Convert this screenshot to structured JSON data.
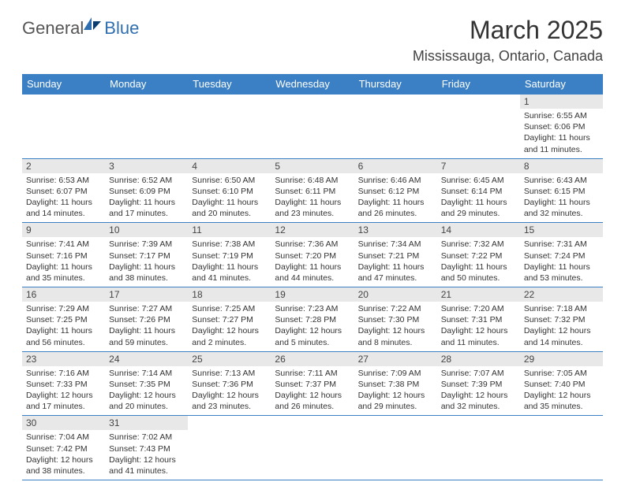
{
  "logo": {
    "part1": "General",
    "part2": "Blue"
  },
  "title": "March 2025",
  "location": "Mississauga, Ontario, Canada",
  "header_bg": "#3b7fc4",
  "border_color": "#3b7fc4",
  "daynum_bg": "#e8e8e8",
  "day_headers": [
    "Sunday",
    "Monday",
    "Tuesday",
    "Wednesday",
    "Thursday",
    "Friday",
    "Saturday"
  ],
  "weeks": [
    [
      null,
      null,
      null,
      null,
      null,
      null,
      {
        "n": "1",
        "sr": "6:55 AM",
        "ss": "6:06 PM",
        "dl": "11 hours and 11 minutes."
      }
    ],
    [
      {
        "n": "2",
        "sr": "6:53 AM",
        "ss": "6:07 PM",
        "dl": "11 hours and 14 minutes."
      },
      {
        "n": "3",
        "sr": "6:52 AM",
        "ss": "6:09 PM",
        "dl": "11 hours and 17 minutes."
      },
      {
        "n": "4",
        "sr": "6:50 AM",
        "ss": "6:10 PM",
        "dl": "11 hours and 20 minutes."
      },
      {
        "n": "5",
        "sr": "6:48 AM",
        "ss": "6:11 PM",
        "dl": "11 hours and 23 minutes."
      },
      {
        "n": "6",
        "sr": "6:46 AM",
        "ss": "6:12 PM",
        "dl": "11 hours and 26 minutes."
      },
      {
        "n": "7",
        "sr": "6:45 AM",
        "ss": "6:14 PM",
        "dl": "11 hours and 29 minutes."
      },
      {
        "n": "8",
        "sr": "6:43 AM",
        "ss": "6:15 PM",
        "dl": "11 hours and 32 minutes."
      }
    ],
    [
      {
        "n": "9",
        "sr": "7:41 AM",
        "ss": "7:16 PM",
        "dl": "11 hours and 35 minutes."
      },
      {
        "n": "10",
        "sr": "7:39 AM",
        "ss": "7:17 PM",
        "dl": "11 hours and 38 minutes."
      },
      {
        "n": "11",
        "sr": "7:38 AM",
        "ss": "7:19 PM",
        "dl": "11 hours and 41 minutes."
      },
      {
        "n": "12",
        "sr": "7:36 AM",
        "ss": "7:20 PM",
        "dl": "11 hours and 44 minutes."
      },
      {
        "n": "13",
        "sr": "7:34 AM",
        "ss": "7:21 PM",
        "dl": "11 hours and 47 minutes."
      },
      {
        "n": "14",
        "sr": "7:32 AM",
        "ss": "7:22 PM",
        "dl": "11 hours and 50 minutes."
      },
      {
        "n": "15",
        "sr": "7:31 AM",
        "ss": "7:24 PM",
        "dl": "11 hours and 53 minutes."
      }
    ],
    [
      {
        "n": "16",
        "sr": "7:29 AM",
        "ss": "7:25 PM",
        "dl": "11 hours and 56 minutes."
      },
      {
        "n": "17",
        "sr": "7:27 AM",
        "ss": "7:26 PM",
        "dl": "11 hours and 59 minutes."
      },
      {
        "n": "18",
        "sr": "7:25 AM",
        "ss": "7:27 PM",
        "dl": "12 hours and 2 minutes."
      },
      {
        "n": "19",
        "sr": "7:23 AM",
        "ss": "7:28 PM",
        "dl": "12 hours and 5 minutes."
      },
      {
        "n": "20",
        "sr": "7:22 AM",
        "ss": "7:30 PM",
        "dl": "12 hours and 8 minutes."
      },
      {
        "n": "21",
        "sr": "7:20 AM",
        "ss": "7:31 PM",
        "dl": "12 hours and 11 minutes."
      },
      {
        "n": "22",
        "sr": "7:18 AM",
        "ss": "7:32 PM",
        "dl": "12 hours and 14 minutes."
      }
    ],
    [
      {
        "n": "23",
        "sr": "7:16 AM",
        "ss": "7:33 PM",
        "dl": "12 hours and 17 minutes."
      },
      {
        "n": "24",
        "sr": "7:14 AM",
        "ss": "7:35 PM",
        "dl": "12 hours and 20 minutes."
      },
      {
        "n": "25",
        "sr": "7:13 AM",
        "ss": "7:36 PM",
        "dl": "12 hours and 23 minutes."
      },
      {
        "n": "26",
        "sr": "7:11 AM",
        "ss": "7:37 PM",
        "dl": "12 hours and 26 minutes."
      },
      {
        "n": "27",
        "sr": "7:09 AM",
        "ss": "7:38 PM",
        "dl": "12 hours and 29 minutes."
      },
      {
        "n": "28",
        "sr": "7:07 AM",
        "ss": "7:39 PM",
        "dl": "12 hours and 32 minutes."
      },
      {
        "n": "29",
        "sr": "7:05 AM",
        "ss": "7:40 PM",
        "dl": "12 hours and 35 minutes."
      }
    ],
    [
      {
        "n": "30",
        "sr": "7:04 AM",
        "ss": "7:42 PM",
        "dl": "12 hours and 38 minutes."
      },
      {
        "n": "31",
        "sr": "7:02 AM",
        "ss": "7:43 PM",
        "dl": "12 hours and 41 minutes."
      },
      null,
      null,
      null,
      null,
      null
    ]
  ],
  "labels": {
    "sunrise": "Sunrise:",
    "sunset": "Sunset:",
    "daylight": "Daylight:"
  }
}
